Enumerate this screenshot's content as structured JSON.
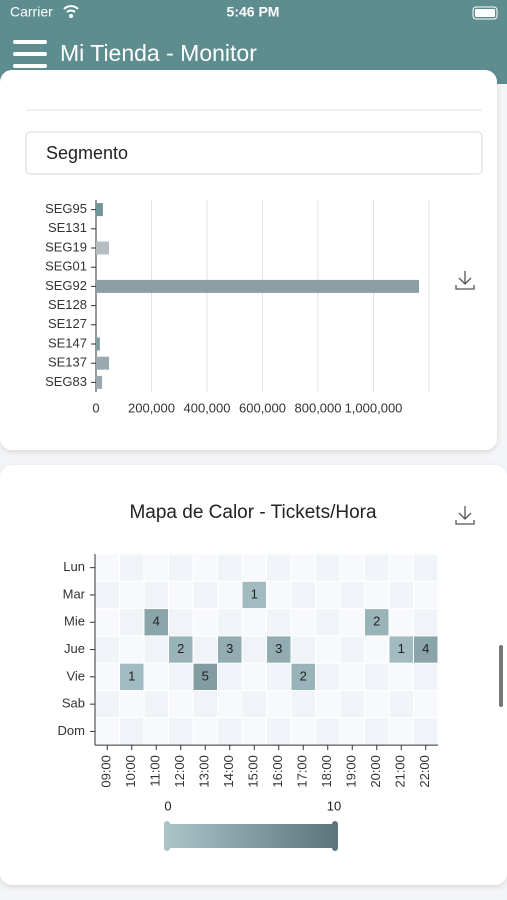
{
  "status_bar": {
    "carrier": "Carrier",
    "time": "5:46 PM"
  },
  "app_bar": {
    "title": "Mi Tienda - Monitor"
  },
  "segment_select": {
    "label": "Segmento"
  },
  "chart_data": [
    {
      "type": "bar",
      "orientation": "horizontal",
      "categories": [
        "SEG95",
        "SE131",
        "SEG19",
        "SEG01",
        "SEG92",
        "SE128",
        "SE127",
        "SE147",
        "SE137",
        "SEG83"
      ],
      "values": [
        25000,
        0,
        47000,
        0,
        1164000,
        0,
        0,
        14000,
        47000,
        22000
      ],
      "colors": [
        "#6f9599",
        "#6f9599",
        "#b7bec2",
        "#b7bec2",
        "#8e9ea5",
        "#8e9ea5",
        "#8e9ea5",
        "#7f9ea3",
        "#9aa9af",
        "#9aa9af"
      ],
      "xlim": [
        0,
        1200000
      ],
      "xticks": [
        0,
        {
          "value": 200000,
          "label": "200,000"
        },
        {
          "value": 400000,
          "label": "400,000"
        },
        {
          "value": 600000,
          "label": "600,000"
        },
        {
          "value": 800000,
          "label": "800,000"
        },
        {
          "value": 1000000,
          "label": "1,000,000"
        }
      ],
      "grid": true
    },
    {
      "type": "heatmap",
      "title": "Mapa de Calor - Tickets/Hora",
      "rows": [
        "Lun",
        "Mar",
        "Mie",
        "Jue",
        "Vie",
        "Sab",
        "Dom"
      ],
      "columns": [
        "09:00",
        "10:00",
        "11:00",
        "12:00",
        "13:00",
        "14:00",
        "15:00",
        "16:00",
        "17:00",
        "18:00",
        "19:00",
        "20:00",
        "21:00",
        "22:00"
      ],
      "values": [
        [
          0,
          0,
          0,
          0,
          0,
          0,
          0,
          0,
          0,
          0,
          0,
          0,
          0,
          0
        ],
        [
          0,
          0,
          0,
          0,
          0,
          0,
          1,
          0,
          0,
          0,
          0,
          0,
          0,
          0
        ],
        [
          0,
          0,
          4,
          0,
          0,
          0,
          0,
          0,
          0,
          0,
          0,
          2,
          0,
          0
        ],
        [
          0,
          0,
          0,
          2,
          0,
          3,
          0,
          3,
          0,
          0,
          0,
          0,
          1,
          4
        ],
        [
          0,
          1,
          0,
          0,
          5,
          0,
          0,
          0,
          2,
          0,
          0,
          0,
          0,
          0
        ],
        [
          0,
          0,
          0,
          0,
          0,
          0,
          0,
          0,
          0,
          0,
          0,
          0,
          0,
          0
        ],
        [
          0,
          0,
          0,
          0,
          0,
          0,
          0,
          0,
          0,
          0,
          0,
          0,
          0,
          0
        ]
      ],
      "color_range": [
        "#a9c3c7",
        "#5b777c"
      ],
      "clim": [
        0,
        10
      ],
      "cticks": [
        0,
        10
      ]
    }
  ]
}
